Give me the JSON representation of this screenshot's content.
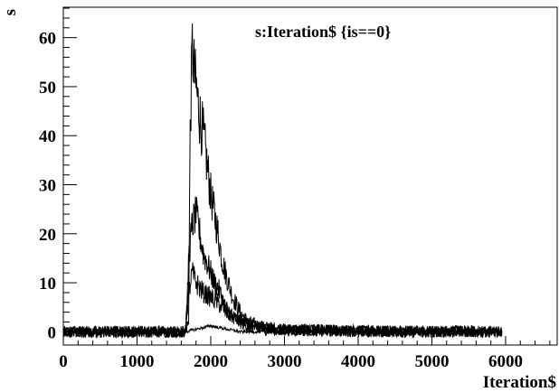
{
  "chart_data": {
    "type": "line",
    "title": "s:Iteration$ {is==0}",
    "xlabel": "Iteration$",
    "ylabel": "s",
    "xlim": [
      0,
      6700
    ],
    "ylim": [
      -2.7,
      66.2
    ],
    "x_ticks": [
      0,
      1000,
      2000,
      3000,
      4000,
      5000,
      6000
    ],
    "y_ticks": [
      0,
      10,
      20,
      30,
      40,
      50,
      60
    ],
    "x_tick_labels": [
      "0",
      "1000",
      "2000",
      "3000",
      "4000",
      "5000",
      "6000"
    ],
    "y_tick_labels": [
      "0",
      "10",
      "20",
      "30",
      "40",
      "50",
      "60"
    ],
    "grid": false,
    "legend": "none",
    "series": [
      {
        "x": [
          0,
          1650,
          1700,
          1720,
          1750,
          1780,
          1800,
          1850,
          1900,
          1950,
          2000,
          2050,
          2100,
          2150,
          2200,
          2300,
          2400,
          2500,
          2600,
          2700,
          3000,
          3500,
          4000,
          4500,
          5000,
          5500,
          5950
        ],
        "values": [
          0,
          0,
          2,
          40,
          58,
          52,
          50,
          44,
          40,
          34,
          28,
          24,
          20,
          15,
          12,
          7,
          4,
          2,
          1.5,
          1,
          0.5,
          0.3,
          0.2,
          0.1,
          0.1,
          0.1,
          0
        ]
      },
      {
        "x": [
          0,
          1650,
          1680,
          1700,
          1750,
          1800,
          1850,
          1900,
          1950,
          2000,
          2050,
          2100,
          2150,
          2200,
          2300,
          2400,
          2500,
          2600,
          2800,
          3500,
          4500,
          5950
        ],
        "values": [
          0,
          0,
          5,
          15,
          22,
          24,
          20,
          16,
          14,
          12,
          10,
          9,
          7,
          5,
          3,
          2,
          1.2,
          0.8,
          0.4,
          0.2,
          0.1,
          0
        ]
      },
      {
        "x": [
          0,
          1650,
          1700,
          1750,
          1800,
          1850,
          1900,
          2000,
          2100,
          2200,
          2300,
          2400,
          2600,
          3000,
          4000,
          5950
        ],
        "values": [
          0,
          0,
          8,
          12,
          10,
          9,
          8,
          7,
          6,
          4,
          3,
          2,
          1,
          0.4,
          0.1,
          0
        ]
      },
      {
        "x": [
          0,
          1650,
          2000,
          2400,
          5950
        ],
        "values": [
          0,
          0,
          1.2,
          0,
          0
        ]
      }
    ]
  }
}
